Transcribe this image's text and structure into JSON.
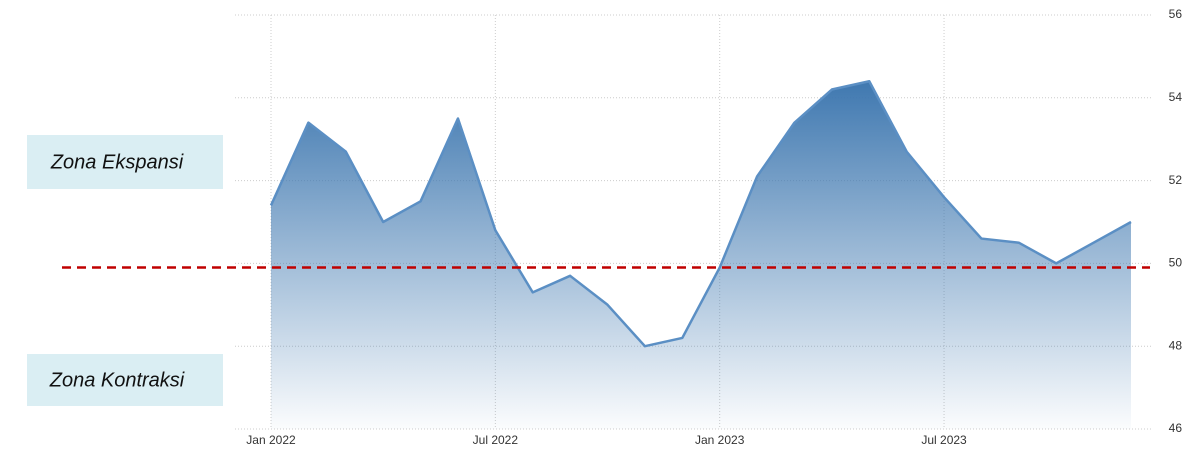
{
  "chart_data": {
    "type": "line",
    "categories": [
      "Jan 2022",
      null,
      null,
      null,
      null,
      null,
      "Jul 2022",
      null,
      null,
      null,
      null,
      null,
      "Jan 2023",
      null,
      null,
      null,
      null,
      null,
      "Jul 2023",
      null,
      null,
      null,
      null,
      null
    ],
    "values": [
      51.4,
      53.4,
      52.7,
      51.0,
      51.5,
      53.5,
      50.8,
      49.3,
      49.7,
      49.0,
      48.0,
      48.2,
      49.9,
      52.1,
      53.4,
      54.2,
      54.4,
      52.7,
      51.6,
      50.6,
      50.5,
      50.0,
      50.5,
      51.0
    ],
    "color": "#5b8fc4",
    "ylim": [
      46,
      56
    ],
    "yticks": [
      46,
      48,
      50,
      52,
      54,
      56
    ],
    "grid": true,
    "reference_line": {
      "value": 49.9,
      "color": "#c00000"
    },
    "annotations": [
      "Zona Ekspansi",
      "Zona Kontraksi"
    ]
  }
}
